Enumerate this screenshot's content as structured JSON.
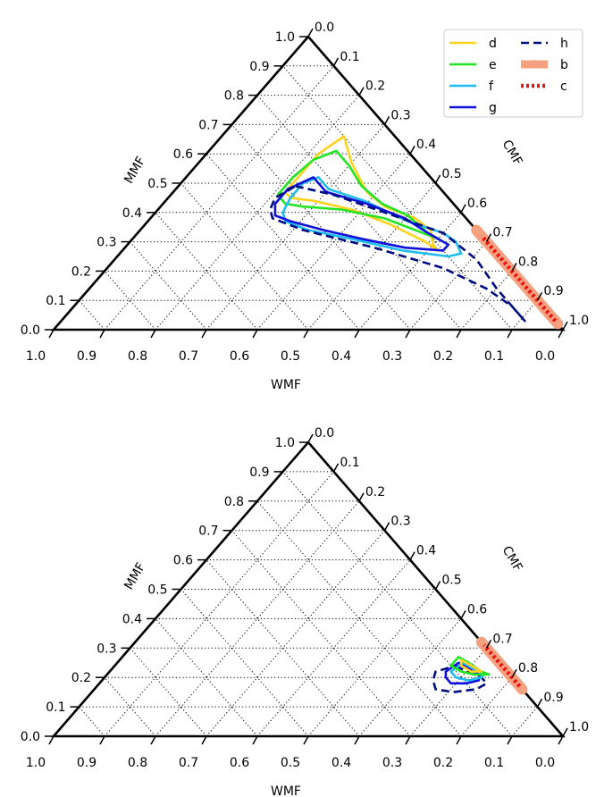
{
  "chart_data": [
    {
      "type": "ternary",
      "axes": {
        "bottom": {
          "label": "WMF",
          "ticks": [
            "1.0",
            "0.9",
            "0.8",
            "0.7",
            "0.6",
            "0.5",
            "0.4",
            "0.3",
            "0.2",
            "0.1",
            "0.0"
          ]
        },
        "left": {
          "label": "MMF",
          "ticks": [
            "0.0",
            "0.1",
            "0.2",
            "0.3",
            "0.4",
            "0.5",
            "0.6",
            "0.7",
            "0.8",
            "0.9",
            "1.0"
          ]
        },
        "right": {
          "label": "CMF",
          "ticks": [
            "0.0",
            "0.1",
            "0.2",
            "0.3",
            "0.4",
            "0.5",
            "0.6",
            "0.7",
            "0.8",
            "0.9",
            "1.0"
          ]
        }
      },
      "grid": true,
      "legend": {
        "position": "top-right",
        "columns": 2
      },
      "series": [
        {
          "name": "d",
          "color": "#ffd21f",
          "style": "solid",
          "kind": "contour",
          "points": [
            [
              0.66,
              0.24
            ],
            [
              0.57,
              0.3
            ],
            [
              0.47,
              0.38
            ],
            [
              0.42,
              0.44
            ],
            [
              0.38,
              0.52
            ],
            [
              0.34,
              0.57
            ],
            [
              0.29,
              0.6
            ],
            [
              0.27,
              0.62
            ],
            [
              0.3,
              0.58
            ],
            [
              0.36,
              0.48
            ],
            [
              0.41,
              0.38
            ],
            [
              0.44,
              0.29
            ],
            [
              0.45,
              0.24
            ],
            [
              0.47,
              0.22
            ],
            [
              0.53,
              0.22
            ],
            [
              0.6,
              0.22
            ],
            [
              0.66,
              0.24
            ]
          ]
        },
        {
          "name": "e",
          "color": "#22e422",
          "style": "solid",
          "kind": "contour",
          "points": [
            [
              0.56,
              0.3
            ],
            [
              0.49,
              0.36
            ],
            [
              0.43,
              0.43
            ],
            [
              0.39,
              0.5
            ],
            [
              0.33,
              0.57
            ],
            [
              0.31,
              0.6
            ],
            [
              0.33,
              0.56
            ],
            [
              0.38,
              0.46
            ],
            [
              0.41,
              0.36
            ],
            [
              0.42,
              0.28
            ],
            [
              0.43,
              0.24
            ],
            [
              0.46,
              0.21
            ],
            [
              0.52,
              0.21
            ],
            [
              0.58,
              0.22
            ],
            [
              0.61,
              0.25
            ],
            [
              0.56,
              0.3
            ]
          ]
        },
        {
          "name": "f",
          "color": "#1fbcee",
          "style": "solid",
          "kind": "contour",
          "points": [
            [
              0.52,
              0.26
            ],
            [
              0.48,
              0.3
            ],
            [
              0.44,
              0.39
            ],
            [
              0.37,
              0.51
            ],
            [
              0.33,
              0.6
            ],
            [
              0.3,
              0.64
            ],
            [
              0.26,
              0.67
            ],
            [
              0.25,
              0.65
            ],
            [
              0.27,
              0.55
            ],
            [
              0.31,
              0.43
            ],
            [
              0.34,
              0.33
            ],
            [
              0.37,
              0.27
            ],
            [
              0.4,
              0.25
            ],
            [
              0.45,
              0.24
            ],
            [
              0.5,
              0.24
            ],
            [
              0.52,
              0.26
            ]
          ]
        },
        {
          "name": "g",
          "color": "#1010dd",
          "style": "solid",
          "kind": "contour",
          "points": [
            [
              0.52,
              0.25
            ],
            [
              0.47,
              0.3
            ],
            [
              0.43,
              0.4
            ],
            [
              0.38,
              0.5
            ],
            [
              0.33,
              0.57
            ],
            [
              0.29,
              0.63
            ],
            [
              0.27,
              0.63
            ],
            [
              0.28,
              0.55
            ],
            [
              0.31,
              0.45
            ],
            [
              0.34,
              0.36
            ],
            [
              0.37,
              0.28
            ],
            [
              0.39,
              0.24
            ],
            [
              0.43,
              0.22
            ],
            [
              0.48,
              0.22
            ],
            [
              0.52,
              0.25
            ]
          ]
        },
        {
          "name": "h",
          "color": "#000d80",
          "style": "dashed",
          "kind": "contour",
          "points": [
            [
              0.49,
              0.23
            ],
            [
              0.46,
              0.32
            ],
            [
              0.4,
              0.45
            ],
            [
              0.33,
              0.6
            ],
            [
              0.24,
              0.71
            ],
            [
              0.14,
              0.8
            ],
            [
              0.03,
              0.91
            ],
            [
              0.08,
              0.86
            ],
            [
              0.14,
              0.78
            ],
            [
              0.21,
              0.66
            ],
            [
              0.28,
              0.49
            ],
            [
              0.34,
              0.32
            ],
            [
              0.38,
              0.24
            ],
            [
              0.41,
              0.22
            ],
            [
              0.45,
              0.21
            ],
            [
              0.49,
              0.23
            ]
          ]
        },
        {
          "name": "b",
          "color": "#f4a17f",
          "style": "thick",
          "kind": "line",
          "points": [
            [
              0.02,
              0.98
            ],
            [
              0.1,
              0.9
            ],
            [
              0.2,
              0.8
            ],
            [
              0.3,
              0.7
            ],
            [
              0.34,
              0.66
            ]
          ]
        },
        {
          "name": "c",
          "color": "#ee1111",
          "style": "dotted",
          "kind": "line",
          "points": [
            [
              0.03,
              0.97
            ],
            [
              0.1,
              0.9
            ],
            [
              0.2,
              0.8
            ],
            [
              0.3,
              0.7
            ],
            [
              0.32,
              0.68
            ]
          ]
        }
      ]
    },
    {
      "type": "ternary",
      "axes": {
        "bottom": {
          "label": "WMF",
          "ticks": [
            "1.0",
            "0.9",
            "0.8",
            "0.7",
            "0.6",
            "0.5",
            "0.4",
            "0.3",
            "0.2",
            "0.1",
            "0.0"
          ]
        },
        "left": {
          "label": "MMF",
          "ticks": [
            "0.0",
            "0.1",
            "0.2",
            "0.3",
            "0.4",
            "0.5",
            "0.6",
            "0.7",
            "0.8",
            "0.9",
            "1.0"
          ]
        },
        "right": {
          "label": "CMF",
          "ticks": [
            "0.0",
            "0.1",
            "0.2",
            "0.3",
            "0.4",
            "0.5",
            "0.6",
            "0.7",
            "0.8",
            "0.9",
            "1.0"
          ]
        }
      },
      "grid": true,
      "series": [
        {
          "name": "h",
          "color": "#000d80",
          "style": "dashed",
          "kind": "contour",
          "points": [
            [
              0.24,
              0.67
            ],
            [
              0.22,
              0.7
            ],
            [
              0.2,
              0.74
            ],
            [
              0.18,
              0.76
            ],
            [
              0.16,
              0.75
            ],
            [
              0.15,
              0.71
            ],
            [
              0.16,
              0.67
            ],
            [
              0.19,
              0.65
            ],
            [
              0.22,
              0.64
            ],
            [
              0.24,
              0.67
            ]
          ]
        },
        {
          "name": "g",
          "color": "#1010dd",
          "style": "solid",
          "kind": "contour",
          "points": [
            [
              0.25,
              0.67
            ],
            [
              0.23,
              0.7
            ],
            [
              0.21,
              0.73
            ],
            [
              0.19,
              0.74
            ],
            [
              0.18,
              0.72
            ],
            [
              0.18,
              0.69
            ],
            [
              0.2,
              0.67
            ],
            [
              0.22,
              0.66
            ],
            [
              0.25,
              0.67
            ]
          ]
        },
        {
          "name": "f",
          "color": "#1fbcee",
          "style": "solid",
          "kind": "contour",
          "points": [
            [
              0.25,
              0.68
            ],
            [
              0.23,
              0.71
            ],
            [
              0.21,
              0.74
            ],
            [
              0.2,
              0.74
            ],
            [
              0.19,
              0.72
            ],
            [
              0.2,
              0.69
            ],
            [
              0.22,
              0.67
            ],
            [
              0.25,
              0.68
            ]
          ]
        },
        {
          "name": "e",
          "color": "#22e422",
          "style": "solid",
          "kind": "contour",
          "points": [
            [
              0.27,
              0.66
            ],
            [
              0.25,
              0.69
            ],
            [
              0.22,
              0.73
            ],
            [
              0.21,
              0.75
            ],
            [
              0.21,
              0.72
            ],
            [
              0.22,
              0.69
            ],
            [
              0.24,
              0.66
            ],
            [
              0.27,
              0.66
            ]
          ]
        },
        {
          "name": "d",
          "color": "#ffd21f",
          "style": "solid",
          "kind": "contour",
          "points": [
            [
              0.26,
              0.67
            ],
            [
              0.24,
              0.7
            ],
            [
              0.22,
              0.73
            ],
            [
              0.22,
              0.71
            ],
            [
              0.24,
              0.68
            ],
            [
              0.26,
              0.67
            ]
          ]
        },
        {
          "name": "b",
          "color": "#f4a17f",
          "style": "thick",
          "kind": "line",
          "points": [
            [
              0.16,
              0.84
            ],
            [
              0.22,
              0.78
            ],
            [
              0.28,
              0.72
            ],
            [
              0.32,
              0.68
            ]
          ]
        },
        {
          "name": "c",
          "color": "#ee1111",
          "style": "dotted",
          "kind": "line",
          "points": [
            [
              0.17,
              0.83
            ],
            [
              0.22,
              0.78
            ],
            [
              0.28,
              0.72
            ],
            [
              0.31,
              0.69
            ]
          ]
        }
      ]
    }
  ]
}
